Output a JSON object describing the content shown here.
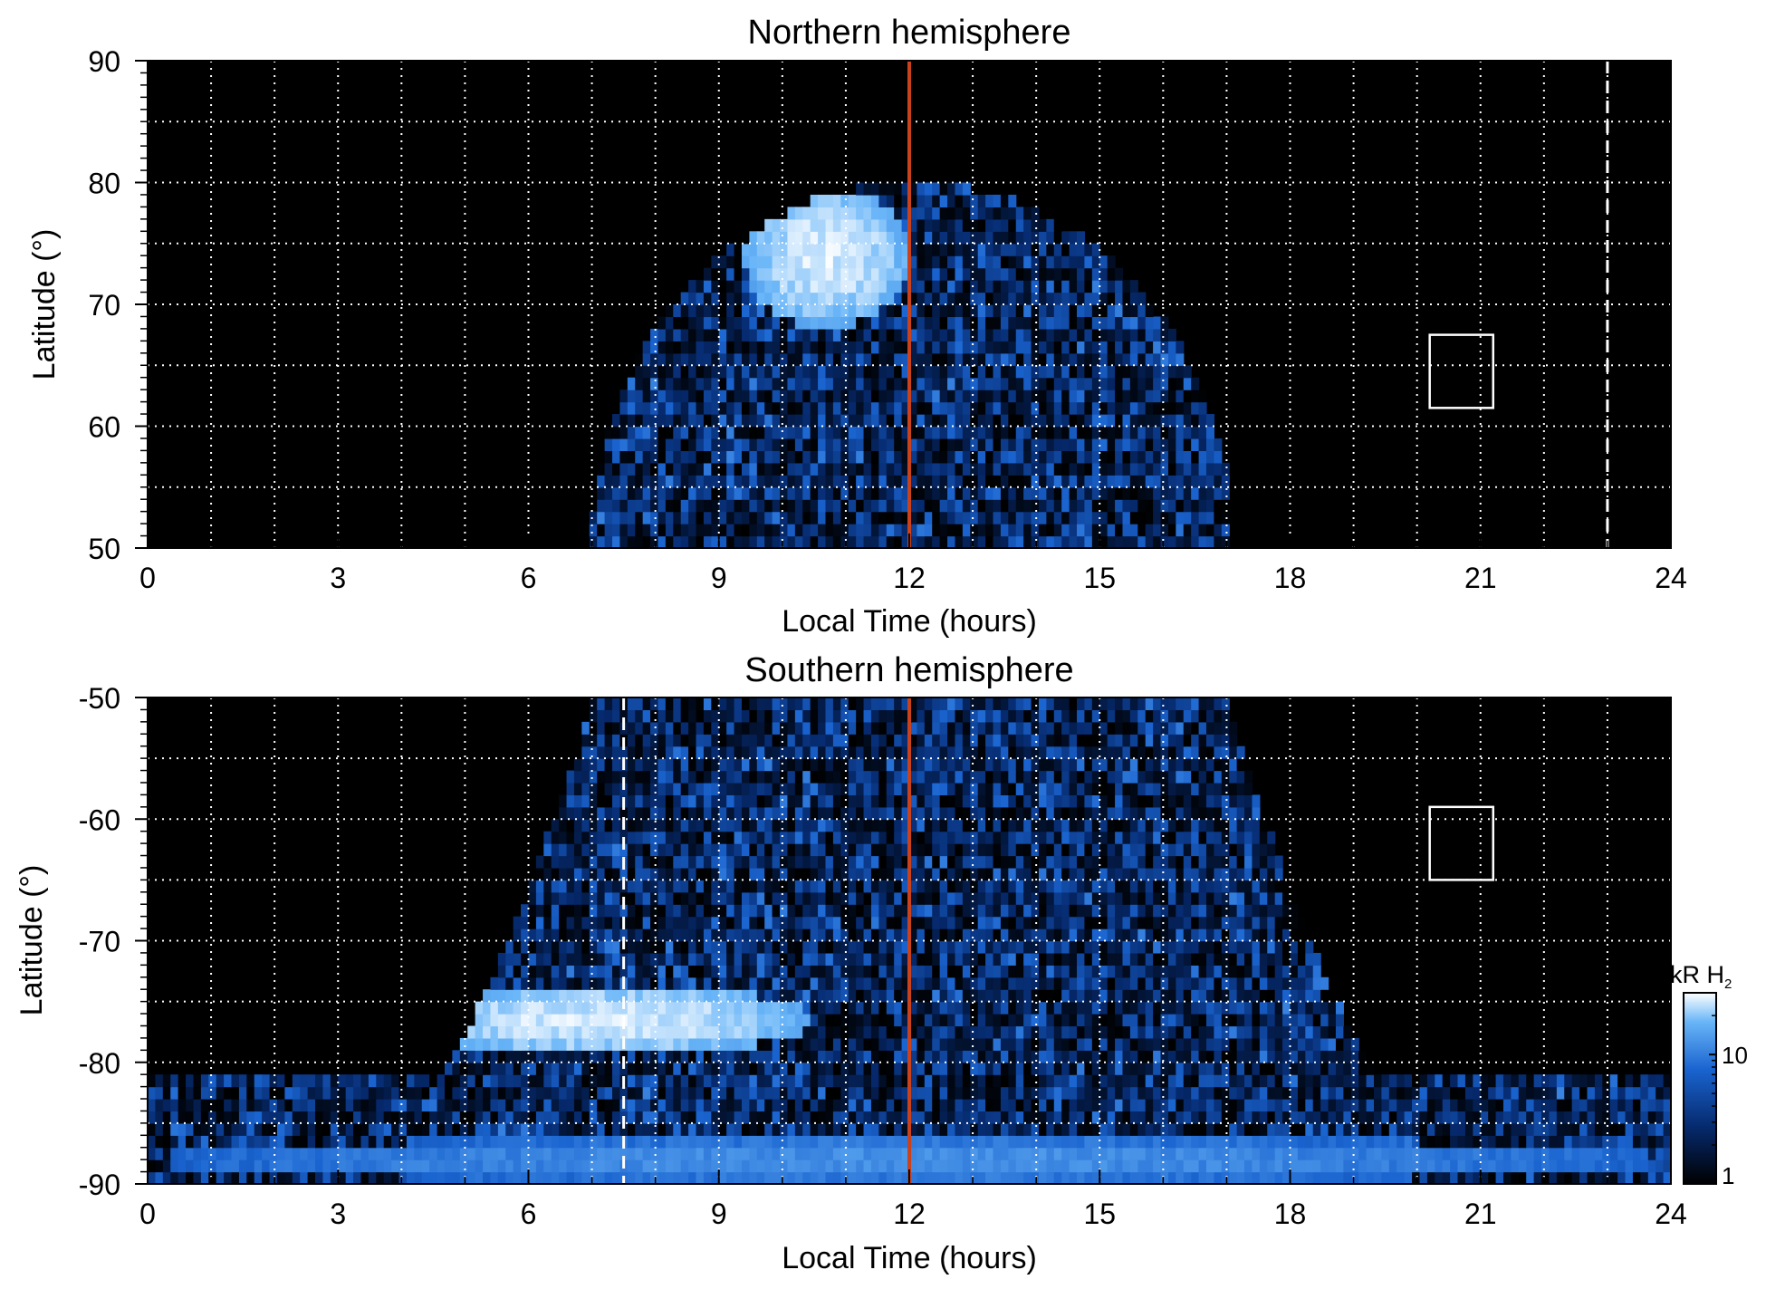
{
  "colors": {
    "background": "#000000",
    "grid": "#ffffff",
    "noon_line": "#c8421e",
    "ramp_low": "#000000",
    "ramp_mid": "#0a3f9e",
    "ramp_high": "#4aa2f2",
    "ramp_max": "#ffffff"
  },
  "chart_data": [
    {
      "type": "heatmap",
      "title": "Northern hemisphere",
      "xlabel": "Local Time (hours)",
      "ylabel": "Latitude (°)",
      "xlim": [
        0,
        24
      ],
      "ylim": [
        50,
        90
      ],
      "x_ticks": [
        0,
        3,
        6,
        9,
        12,
        15,
        18,
        21,
        24
      ],
      "y_ticks": [
        50,
        60,
        70,
        80,
        90
      ],
      "x_tick_labels": [
        "0",
        "3",
        "6",
        "9",
        "12",
        "15",
        "18",
        "21",
        "24"
      ],
      "y_tick_labels": [
        "50",
        "60",
        "70",
        "80",
        "90"
      ],
      "grid": true,
      "grid_x_step": 1,
      "grid_y_step": 5,
      "reference_lines": [
        {
          "x": 12,
          "style": "solid",
          "color": "#c8421e"
        },
        {
          "x": 23,
          "style": "dashed",
          "color": "#ffffff"
        }
      ],
      "boxes": [
        {
          "x": [
            20.2,
            21.2
          ],
          "y": [
            61.5,
            67.5
          ]
        }
      ],
      "coverage": {
        "lt_range": [
          7,
          17.1
        ],
        "lat_max": 80
      },
      "bright_regions": [
        {
          "lt_center": 10.7,
          "lt_width": 2.6,
          "lat_center": 74,
          "lat_width": 12,
          "intensity": 30
        }
      ],
      "brightness_range_kR": [
        1,
        30
      ],
      "grid_rows": 40,
      "grid_cols": 200
    },
    {
      "type": "heatmap",
      "title": "Southern hemisphere",
      "xlabel": "Local Time (hours)",
      "ylabel": "Latitude (°)",
      "xlim": [
        0,
        24
      ],
      "ylim": [
        -90,
        -50
      ],
      "x_ticks": [
        0,
        3,
        6,
        9,
        12,
        15,
        18,
        21,
        24
      ],
      "y_ticks": [
        -90,
        -80,
        -70,
        -60,
        -50
      ],
      "x_tick_labels": [
        "0",
        "3",
        "6",
        "9",
        "12",
        "15",
        "18",
        "21",
        "24"
      ],
      "y_tick_labels": [
        "-90",
        "-80",
        "-70",
        "-60",
        "-50"
      ],
      "grid": true,
      "grid_x_step": 1,
      "grid_y_step": 5,
      "reference_lines": [
        {
          "x": 12,
          "style": "solid",
          "color": "#c8421e"
        },
        {
          "x": 7.5,
          "style": "dashed",
          "color": "#ffffff"
        }
      ],
      "boxes": [
        {
          "x": [
            20.2,
            21.2
          ],
          "y": [
            -65,
            -59
          ]
        }
      ],
      "coverage": {
        "lt_range": [
          2.5,
          21.5
        ],
        "lat_min": -90
      },
      "bright_regions": [
        {
          "lt_center": 7.2,
          "lt_width": 6.6,
          "lat_center": -76.5,
          "lat_width": 6,
          "intensity": 30
        },
        {
          "lt_center": 12,
          "lt_width": 24,
          "lat_center": -88,
          "lat_width": 4,
          "intensity": 14
        }
      ],
      "brightness_range_kR": [
        1,
        30
      ],
      "grid_rows": 40,
      "grid_cols": 200
    }
  ],
  "colorbar": {
    "label": "kR H",
    "label_subscript": "2",
    "ticks": [
      1,
      10
    ],
    "tick_labels": [
      "1",
      "10"
    ],
    "range": [
      1,
      30
    ],
    "scale": "log"
  }
}
